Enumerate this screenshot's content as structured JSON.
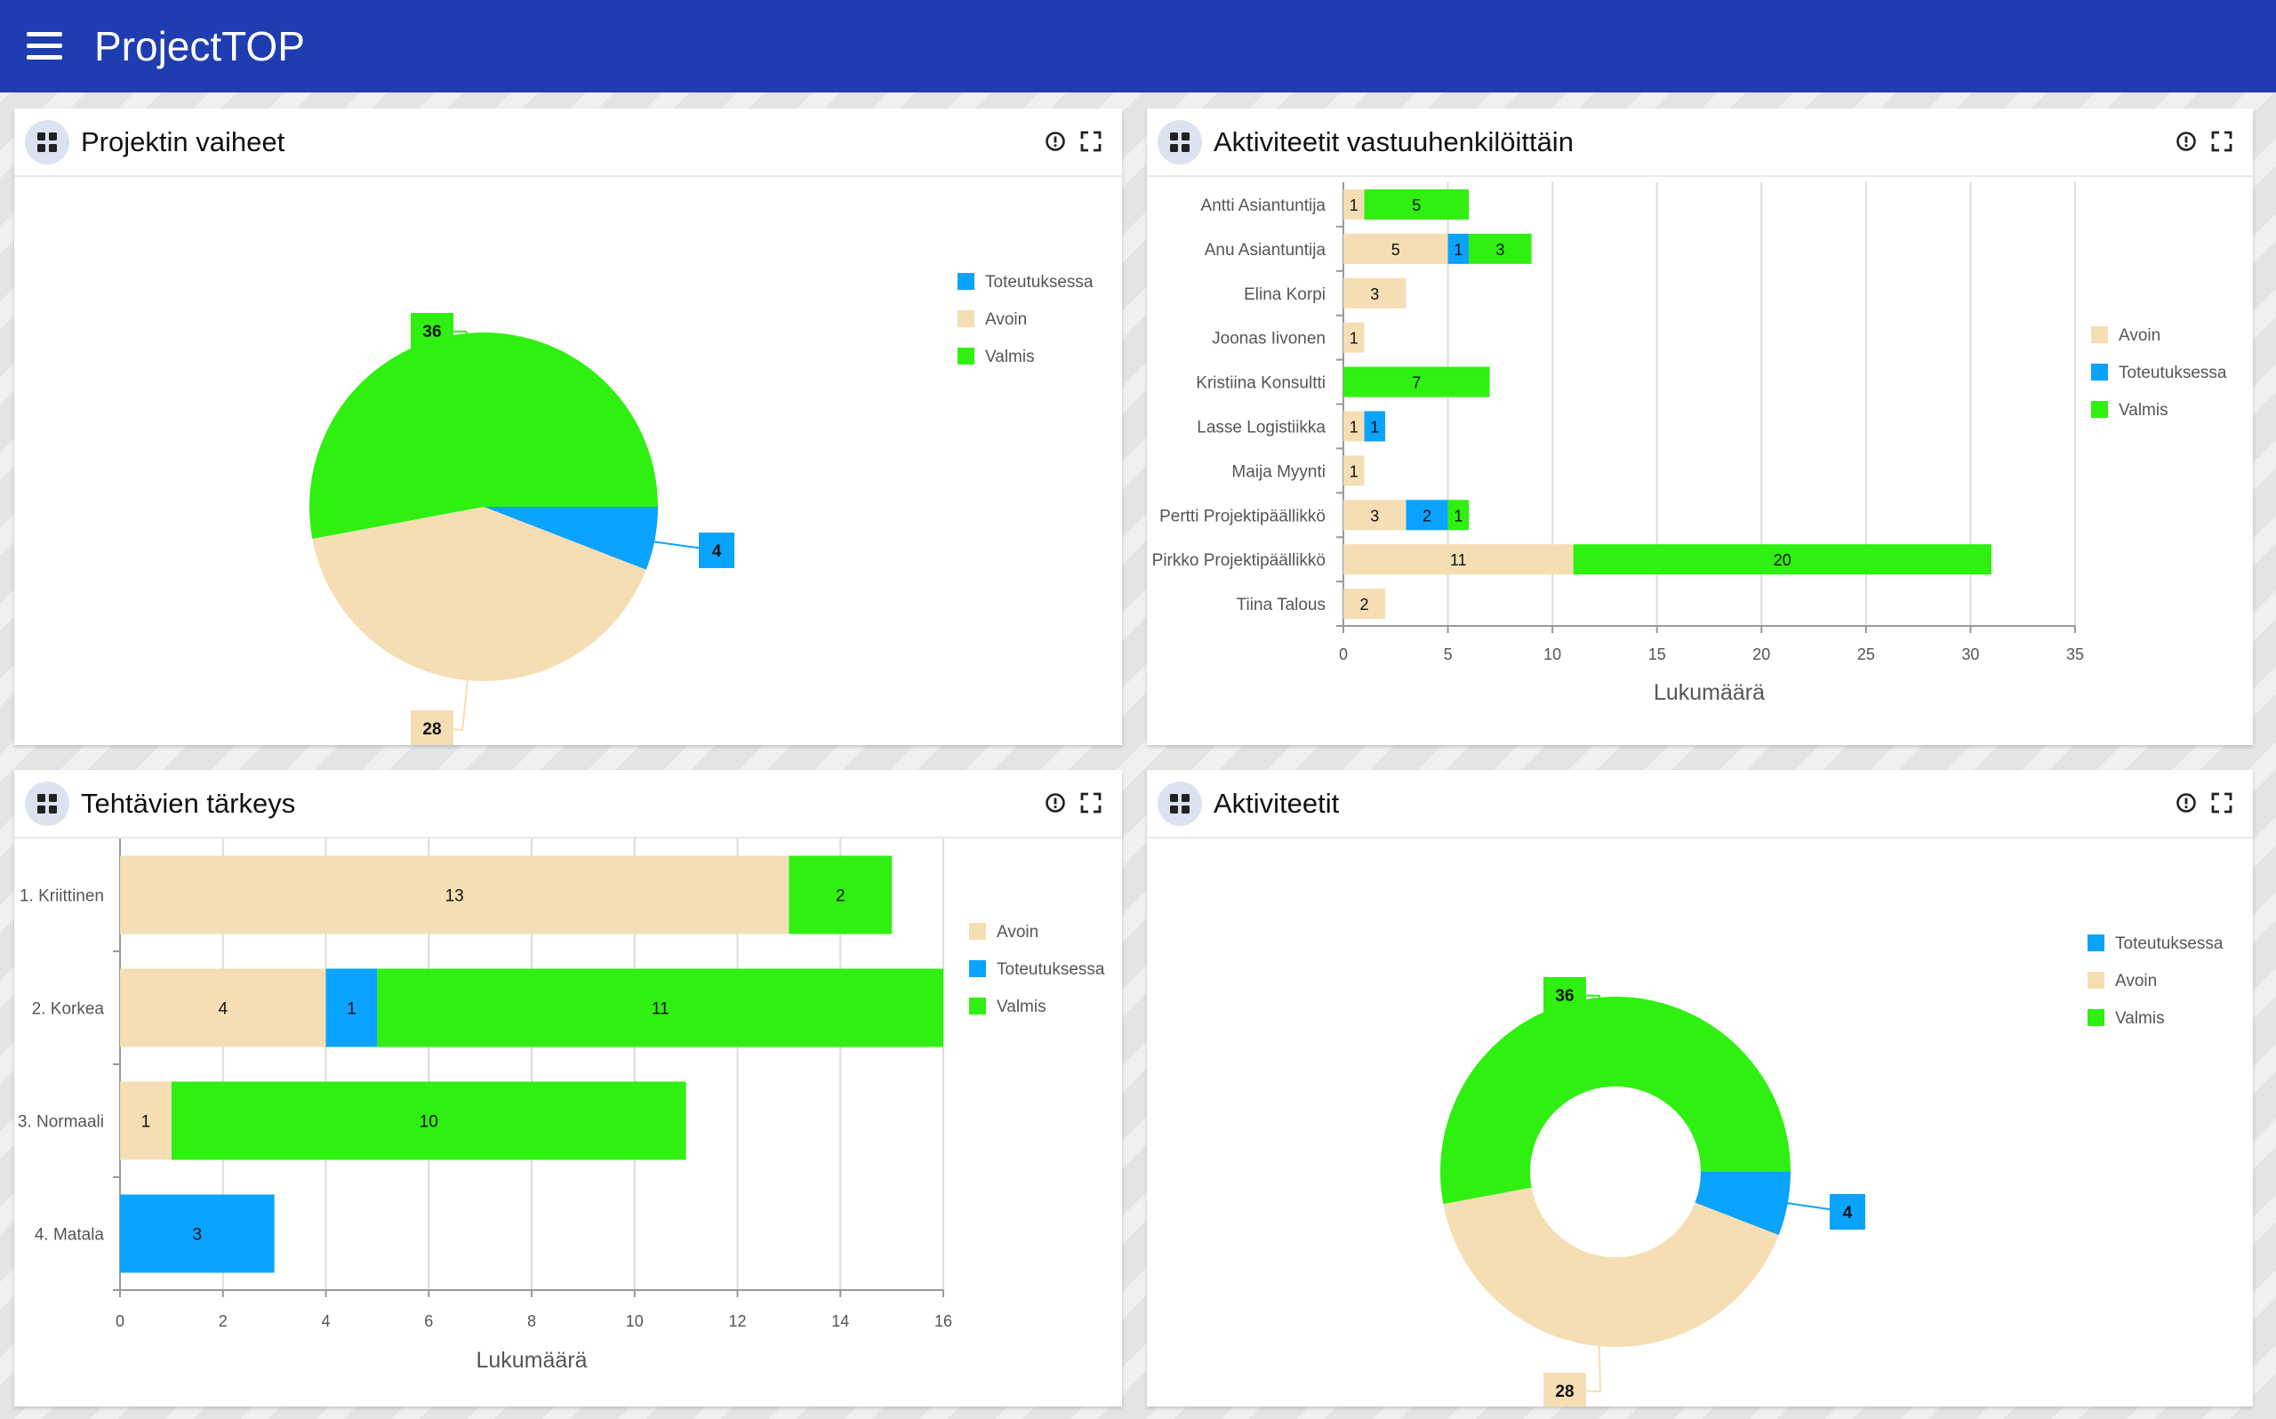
{
  "app": {
    "title": "ProjectTOP",
    "menu_icon": "hamburger-menu-icon"
  },
  "colors": {
    "header": "#1f3db0",
    "avoin": "#f5deb3",
    "toteutuksessa": "#0aa3ff",
    "valmis": "#2ff010"
  },
  "cards": {
    "phases": {
      "title": "Projektin vaiheet"
    },
    "people": {
      "title": "Aktiviteetit vastuuhenkilöittäin"
    },
    "priority": {
      "title": "Tehtävien tärkeys"
    },
    "activities": {
      "title": "Aktiviteetit"
    }
  },
  "chart_data": [
    {
      "type": "pie",
      "title": "Projektin vaiheet",
      "labels": [
        "Toteutuksessa",
        "Avoin",
        "Valmis"
      ],
      "values": [
        4,
        28,
        36
      ],
      "legend": "top-right"
    },
    {
      "type": "bar",
      "orientation": "horizontal",
      "stacked": true,
      "title": "Aktiviteetit vastuuhenkilöittäin",
      "categories": [
        "Antti Asiantuntija",
        "Anu Asiantuntija",
        "Elina Korpi",
        "Joonas Iivonen",
        "Kristiina Konsultti",
        "Lasse Logistiikka",
        "Maija Myynti",
        "Pertti Projektipäällikkö",
        "Pirkko Projektipäällikkö",
        "Tiina Talous"
      ],
      "series": [
        {
          "name": "Avoin",
          "values": [
            1,
            5,
            3,
            1,
            0,
            1,
            1,
            3,
            11,
            2
          ]
        },
        {
          "name": "Toteutuksessa",
          "values": [
            0,
            1,
            0,
            0,
            0,
            1,
            0,
            2,
            0,
            0
          ]
        },
        {
          "name": "Valmis",
          "values": [
            5,
            3,
            0,
            0,
            7,
            0,
            0,
            1,
            20,
            0
          ]
        }
      ],
      "xlabel": "Lukumäärä",
      "xlim": [
        0,
        35
      ],
      "xticks": [
        "0",
        "5",
        "10",
        "15",
        "20",
        "25",
        "30",
        "35"
      ],
      "grid": true,
      "legend": "top-right"
    },
    {
      "type": "bar",
      "orientation": "horizontal",
      "stacked": true,
      "title": "Tehtävien tärkeys",
      "categories": [
        "1. Kriittinen",
        "2. Korkea",
        "3. Normaali",
        "4. Matala"
      ],
      "series": [
        {
          "name": "Avoin",
          "values": [
            13,
            4,
            1,
            0
          ]
        },
        {
          "name": "Toteutuksessa",
          "values": [
            0,
            1,
            0,
            3
          ]
        },
        {
          "name": "Valmis",
          "values": [
            2,
            11,
            10,
            0
          ]
        }
      ],
      "xlabel": "Lukumäärä",
      "xlim": [
        0,
        16
      ],
      "xticks": [
        "0",
        "2",
        "4",
        "6",
        "8",
        "10",
        "12",
        "14",
        "16"
      ],
      "grid": true,
      "legend": "top-right"
    },
    {
      "type": "pie",
      "donut": true,
      "title": "Aktiviteetit",
      "labels": [
        "Toteutuksessa",
        "Avoin",
        "Valmis"
      ],
      "values": [
        4,
        28,
        36
      ],
      "legend": "top-right"
    }
  ]
}
